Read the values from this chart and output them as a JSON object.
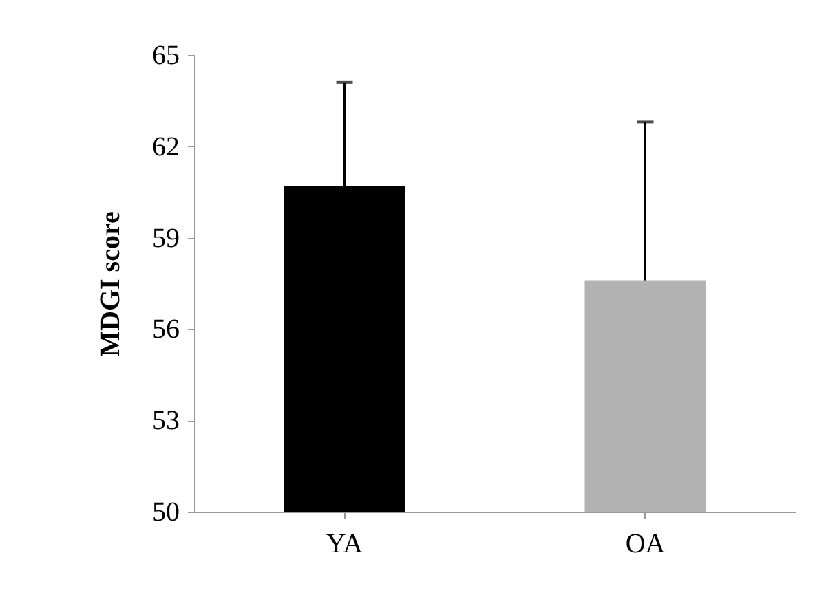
{
  "chart_data": {
    "type": "bar",
    "ylabel": "MDGI score",
    "categories": [
      "YA",
      "OA"
    ],
    "values": [
      60.7,
      57.6
    ],
    "colors": [
      "#000000",
      "#b3b3b3"
    ],
    "errors": [
      [
        60.7,
        64.1
      ],
      [
        57.6,
        62.8
      ]
    ],
    "ylim": [
      50,
      65
    ],
    "yticks": [
      50,
      53,
      56,
      59,
      62,
      65
    ],
    "grid": false
  }
}
